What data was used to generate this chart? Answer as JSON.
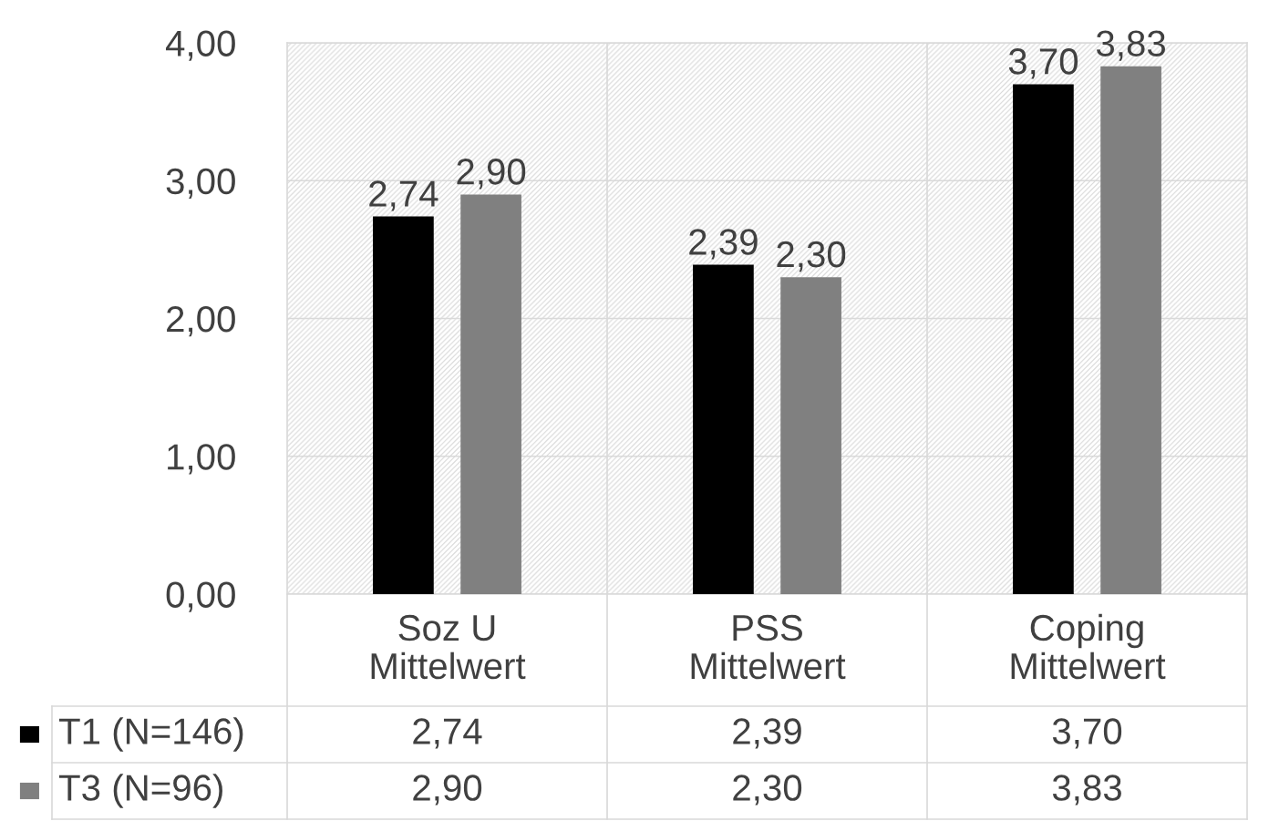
{
  "chart_data": {
    "type": "bar",
    "categories": [
      "Soz U\nMittelwert",
      "PSS\nMittelwert",
      "Coping\nMittelwert"
    ],
    "series": [
      {
        "name": "T1 (N=146)",
        "color": "#000000",
        "values": [
          2.74,
          2.39,
          3.7
        ],
        "value_labels": [
          "2,74",
          "2,39",
          "3,70"
        ]
      },
      {
        "name": "T3 (N=96)",
        "color": "#808080",
        "values": [
          2.9,
          2.3,
          3.83
        ],
        "value_labels": [
          "2,90",
          "2,30",
          "3,83"
        ]
      }
    ],
    "ylim": [
      0,
      4
    ],
    "yticks": [
      {
        "value": 0,
        "label": "0,00"
      },
      {
        "value": 1,
        "label": "1,00"
      },
      {
        "value": 2,
        "label": "2,00"
      },
      {
        "value": 3,
        "label": "3,00"
      },
      {
        "value": 4,
        "label": "4,00"
      }
    ],
    "grid": true,
    "legend": "bottom left"
  }
}
